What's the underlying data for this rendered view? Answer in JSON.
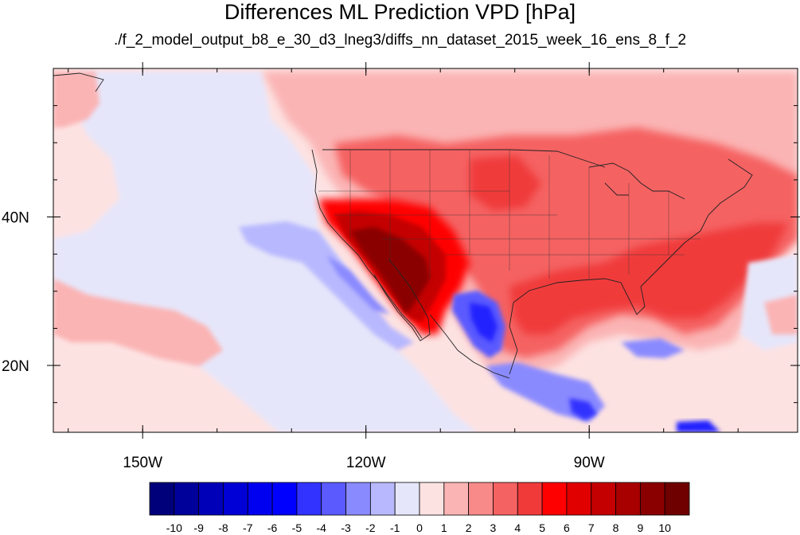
{
  "title": "Differences ML Prediction VPD [hPa]",
  "subtitle": "./f_2_model_output_b8_e_30_d3_lneg3/diffs_nn_dataset_2015_week_16_ens_8_f_2",
  "map": {
    "projection": "cylindrical equidistant",
    "lon_range": [
      -162,
      -62
    ],
    "lat_range": [
      11,
      60
    ],
    "lat_ticks": [
      {
        "value": 40,
        "label": "40N"
      },
      {
        "value": 20,
        "label": "20N"
      }
    ],
    "lon_ticks": [
      {
        "value": -150,
        "label": "150W"
      },
      {
        "value": -120,
        "label": "120W"
      },
      {
        "value": -90,
        "label": "90W"
      }
    ],
    "regions": [
      {
        "name": "pacific-light-red",
        "level": 0.5,
        "color": "#fde2e2"
      },
      {
        "name": "north-light-red",
        "level": 1.5,
        "color": "#fbb4b4"
      },
      {
        "name": "central-us-red",
        "level": 3.5,
        "color": "#f56262"
      },
      {
        "name": "southeast-red",
        "level": 4.5,
        "color": "#f03a3a"
      },
      {
        "name": "southwest-hotspot",
        "level": 8.5,
        "color": "#a80000"
      },
      {
        "name": "gulf-of-california-blue",
        "level": -5,
        "color": "#2323ff"
      },
      {
        "name": "eastern-pacific-blue",
        "level": -2.5,
        "color": "#8a8aff"
      },
      {
        "name": "caribbean-blue",
        "level": -3.5,
        "color": "#5a5aff"
      }
    ]
  },
  "colorbar": {
    "labels": [
      "-10",
      "-9",
      "-8",
      "-7",
      "-6",
      "-5",
      "-4",
      "-3",
      "-2",
      "-1",
      "0",
      "1",
      "2",
      "3",
      "4",
      "5",
      "6",
      "7",
      "8",
      "9",
      "10"
    ],
    "colors": [
      "#00007a",
      "#00009a",
      "#0000b8",
      "#0000d6",
      "#0000f0",
      "#0000ff",
      "#3333ff",
      "#5a5aff",
      "#8a8aff",
      "#b8b8ff",
      "#e6e6fa",
      "#fde2e2",
      "#fbb4b4",
      "#f88a8a",
      "#f56262",
      "#f03a3a",
      "#ff0000",
      "#e00000",
      "#c40000",
      "#a80000",
      "#8a0000",
      "#6e0000"
    ]
  }
}
